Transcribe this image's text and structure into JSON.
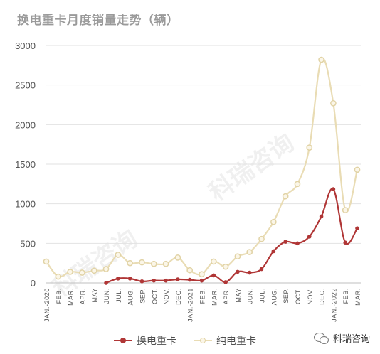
{
  "chart_data": {
    "type": "line",
    "title": "换电重卡月度销量走势（辆）",
    "categories": [
      "JAN.-2020",
      "FEB.",
      "MAR.",
      "APR.",
      "MAY",
      "JUN.",
      "JUL.",
      "AUG.",
      "SEP.",
      "OCT.",
      "NOV.",
      "DEC.",
      "JAN.-2021",
      "FEB.",
      "MAR.",
      "APR.",
      "MAY",
      "JUN.",
      "JUL.",
      "AUG.",
      "SEP.",
      "OCT.",
      "NOV.",
      "DEC.",
      "JAN.-2022",
      "FEB.",
      "MAR."
    ],
    "ylim": [
      0,
      3000
    ],
    "yticks": [
      0,
      500,
      1000,
      1500,
      2000,
      2500,
      3000
    ],
    "grid": true,
    "legend_position": "bottom",
    "series": [
      {
        "name": "换电重卡",
        "color": "#b03636",
        "values": [
          null,
          null,
          null,
          null,
          null,
          0,
          55,
          55,
          20,
          30,
          30,
          45,
          40,
          30,
          95,
          10,
          140,
          130,
          175,
          400,
          520,
          500,
          585,
          840,
          1185,
          510,
          690
        ]
      },
      {
        "name": "纯电重卡",
        "color": "#e9dcb4",
        "values": [
          270,
          80,
          140,
          130,
          155,
          175,
          355,
          250,
          260,
          240,
          240,
          320,
          160,
          110,
          270,
          205,
          335,
          390,
          555,
          770,
          1095,
          1250,
          1710,
          2820,
          2270,
          920,
          1430
        ]
      }
    ]
  },
  "watermark": "科瑞咨询",
  "wechat_label": "科瑞咨询",
  "wechat_icon": "wechat-icon"
}
